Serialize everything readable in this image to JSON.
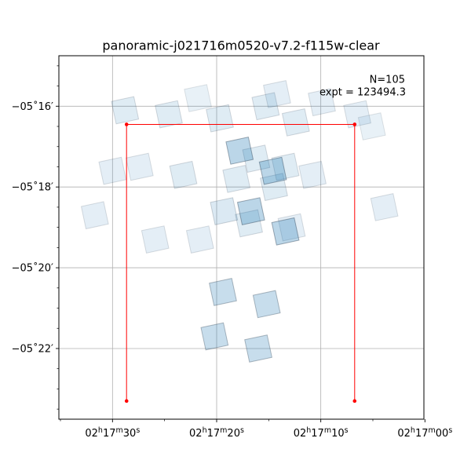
{
  "chart_data": {
    "type": "scatter",
    "title": "panoramic-j021716m0520-v7.2-f115w-clear",
    "xlabel": "",
    "ylabel": "",
    "x_axis": {
      "unit": "seconds of RA offset from 02h17m00s (decreasing to the right)",
      "lim": [
        35.15,
        0.1
      ],
      "ticks": [
        {
          "value": 30,
          "h": "02",
          "m": "17",
          "s": "30"
        },
        {
          "value": 20,
          "h": "02",
          "m": "17",
          "s": "20"
        },
        {
          "value": 10,
          "h": "02",
          "m": "17",
          "s": "10"
        },
        {
          "value": 0,
          "h": "02",
          "m": "17",
          "s": "00"
        }
      ],
      "minor_ticks": [
        35,
        25,
        15,
        5
      ]
    },
    "y_axis": {
      "unit": "arcminutes of declination relative to -05 deg 00 arcmin (negative = further south)",
      "lim": [
        -23.75,
        -14.75
      ],
      "ticks": [
        {
          "value": -16,
          "label": "−05˚16′"
        },
        {
          "value": -18,
          "label": "−05˚18′"
        },
        {
          "value": -20,
          "label": "−05˚20′"
        },
        {
          "value": -22,
          "label": "−05˚22′"
        }
      ],
      "minor_ticks": [
        -15,
        -15.5,
        -16.5,
        -17,
        -17.5,
        -18.5,
        -19,
        -19.5,
        -20.5,
        -21,
        -21.5,
        -22.5,
        -23,
        -23.5
      ]
    },
    "grid": true,
    "annotation": {
      "n_label": "N=105",
      "expt_label": "expt = 123494.3"
    },
    "region_outline": {
      "color": "#ff0000",
      "x": [
        28.65,
        28.65,
        6.75,
        6.75
      ],
      "y": [
        -23.3,
        -16.45,
        -16.45,
        -23.3
      ]
    },
    "footprint_color": "#1f77b4",
    "footprints": [
      {
        "cx": 25.9,
        "cy": -19.3,
        "alpha": 0.12
      },
      {
        "cx": 31.7,
        "cy": -18.7,
        "alpha": 0.12
      },
      {
        "cx": 27.4,
        "cy": -17.5,
        "alpha": 0.12
      },
      {
        "cx": 21.6,
        "cy": -19.3,
        "alpha": 0.12
      },
      {
        "cx": 30.0,
        "cy": -17.6,
        "alpha": 0.12
      },
      {
        "cx": 23.2,
        "cy": -17.7,
        "alpha": 0.14
      },
      {
        "cx": 28.8,
        "cy": -16.1,
        "alpha": 0.14
      },
      {
        "cx": 24.6,
        "cy": -16.2,
        "alpha": 0.14
      },
      {
        "cx": 21.8,
        "cy": -15.8,
        "alpha": 0.1
      },
      {
        "cx": 19.7,
        "cy": -16.3,
        "alpha": 0.14
      },
      {
        "cx": 18.1,
        "cy": -17.8,
        "alpha": 0.14
      },
      {
        "cx": 19.3,
        "cy": -18.6,
        "alpha": 0.16
      },
      {
        "cx": 15.3,
        "cy": -16.0,
        "alpha": 0.14
      },
      {
        "cx": 14.2,
        "cy": -15.7,
        "alpha": 0.12
      },
      {
        "cx": 12.4,
        "cy": -16.4,
        "alpha": 0.14
      },
      {
        "cx": 9.9,
        "cy": -15.9,
        "alpha": 0.12
      },
      {
        "cx": 6.5,
        "cy": -16.2,
        "alpha": 0.12
      },
      {
        "cx": 5.1,
        "cy": -16.5,
        "alpha": 0.1
      },
      {
        "cx": 10.8,
        "cy": -17.7,
        "alpha": 0.12
      },
      {
        "cx": 14.5,
        "cy": -18.0,
        "alpha": 0.14
      },
      {
        "cx": 16.2,
        "cy": -17.3,
        "alpha": 0.14
      },
      {
        "cx": 13.4,
        "cy": -17.5,
        "alpha": 0.14
      },
      {
        "cx": 12.8,
        "cy": -19.0,
        "alpha": 0.12
      },
      {
        "cx": 16.9,
        "cy": -18.9,
        "alpha": 0.14
      },
      {
        "cx": 3.9,
        "cy": -18.5,
        "alpha": 0.12
      },
      {
        "cx": 17.8,
        "cy": -17.1,
        "alpha": 0.3
      },
      {
        "cx": 14.6,
        "cy": -17.6,
        "alpha": 0.3
      },
      {
        "cx": 16.7,
        "cy": -18.6,
        "alpha": 0.3
      },
      {
        "cx": 13.4,
        "cy": -19.1,
        "alpha": 0.3
      },
      {
        "cx": 19.4,
        "cy": -20.6,
        "alpha": 0.25
      },
      {
        "cx": 15.2,
        "cy": -20.9,
        "alpha": 0.25
      },
      {
        "cx": 20.2,
        "cy": -21.7,
        "alpha": 0.25
      },
      {
        "cx": 16.0,
        "cy": -22.0,
        "alpha": 0.25
      }
    ]
  }
}
